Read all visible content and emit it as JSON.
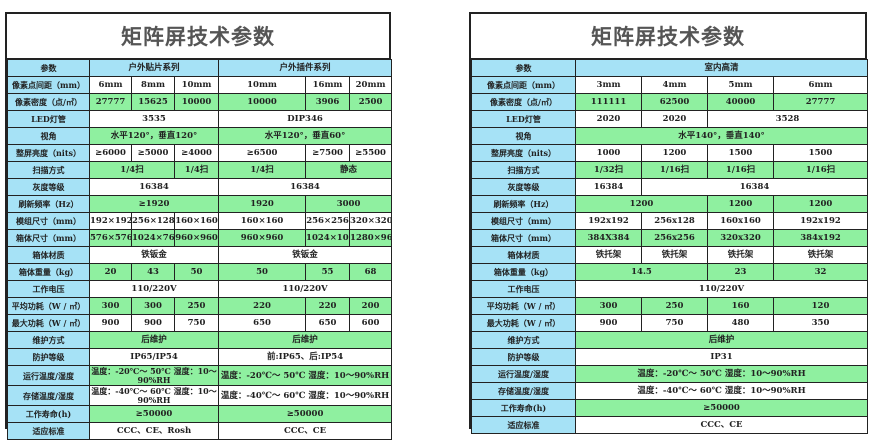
{
  "colors": {
    "label_bg": "#a6e2f6",
    "green_row": "#8ff0a0",
    "title": "#555555"
  },
  "left": {
    "title": "矩阵屏技术参数",
    "header": [
      {
        "t": "参数"
      },
      {
        "t": "户外贴片系列",
        "s": 3
      },
      {
        "t": "户外插件系列",
        "s": 3
      }
    ],
    "rows": [
      {
        "label": "像素点间距（mm）",
        "cells": [
          {
            "t": "6mm"
          },
          {
            "t": "8mm"
          },
          {
            "t": "10mm"
          },
          {
            "t": "10mm"
          },
          {
            "t": "16mm"
          },
          {
            "t": "20mm"
          }
        ]
      },
      {
        "label": "像素密度（点/㎡）",
        "cells": [
          {
            "t": "27777"
          },
          {
            "t": "15625"
          },
          {
            "t": "10000"
          },
          {
            "t": "10000"
          },
          {
            "t": "3906"
          },
          {
            "t": "2500"
          }
        ]
      },
      {
        "label": "LED灯管",
        "cells": [
          {
            "t": "3535",
            "s": 3
          },
          {
            "t": "DIP346",
            "s": 3
          }
        ]
      },
      {
        "label": "视角",
        "cells": [
          {
            "t": "水平120°，垂直120°",
            "s": 3
          },
          {
            "t": "水平120°，垂直60°",
            "s": 3
          }
        ]
      },
      {
        "label": "整屏亮度（nits）",
        "cells": [
          {
            "t": "≥6000"
          },
          {
            "t": "≥5000"
          },
          {
            "t": "≥4000"
          },
          {
            "t": "≥6500"
          },
          {
            "t": "≥7500"
          },
          {
            "t": "≥5500"
          }
        ]
      },
      {
        "label": "扫描方式",
        "cells": [
          {
            "t": "1/4扫",
            "s": 2
          },
          {
            "t": "1/4扫"
          },
          {
            "t": "1/4扫"
          },
          {
            "t": "静态",
            "s": 2
          }
        ]
      },
      {
        "label": "灰度等级",
        "cells": [
          {
            "t": "16384",
            "s": 3
          },
          {
            "t": "16384",
            "s": 3
          }
        ]
      },
      {
        "label": "刷新频率（Hz）",
        "cells": [
          {
            "t": "≥1920",
            "s": 3
          },
          {
            "t": "1920"
          },
          {
            "t": "3000",
            "s": 2
          }
        ]
      },
      {
        "label": "模组尺寸（mm）",
        "cells": [
          {
            "t": "192×192"
          },
          {
            "t": "256×128"
          },
          {
            "t": "160×160"
          },
          {
            "t": "160×160"
          },
          {
            "t": "256×256"
          },
          {
            "t": "320×320"
          }
        ]
      },
      {
        "label": "箱体尺寸（mm）",
        "cells": [
          {
            "t": "576×576"
          },
          {
            "t": "1024×768"
          },
          {
            "t": "960×960"
          },
          {
            "t": "960×960"
          },
          {
            "t": "1024×1024"
          },
          {
            "t": "1280×960"
          }
        ]
      },
      {
        "label": "箱体材质",
        "cells": [
          {
            "t": "铁钣金",
            "s": 3
          },
          {
            "t": "铁钣金",
            "s": 3
          }
        ]
      },
      {
        "label": "箱体重量（kg）",
        "cells": [
          {
            "t": "20"
          },
          {
            "t": "43"
          },
          {
            "t": "50"
          },
          {
            "t": "50"
          },
          {
            "t": "55"
          },
          {
            "t": "68"
          }
        ]
      },
      {
        "label": "工作电压",
        "cells": [
          {
            "t": "110/220V",
            "s": 3
          },
          {
            "t": "110/220V",
            "s": 3
          }
        ]
      },
      {
        "label": "平均功耗（W / ㎡）",
        "cells": [
          {
            "t": "300"
          },
          {
            "t": "300"
          },
          {
            "t": "250"
          },
          {
            "t": "220"
          },
          {
            "t": "220"
          },
          {
            "t": "200"
          }
        ]
      },
      {
        "label": "最大功耗（W / ㎡）",
        "cells": [
          {
            "t": "900"
          },
          {
            "t": "900"
          },
          {
            "t": "750"
          },
          {
            "t": "650"
          },
          {
            "t": "650"
          },
          {
            "t": "600"
          }
        ]
      },
      {
        "label": "维护方式",
        "cells": [
          {
            "t": "后维护",
            "s": 3
          },
          {
            "t": "后维护",
            "s": 3
          }
        ]
      },
      {
        "label": "防护等级",
        "cells": [
          {
            "t": "IP65/IP54",
            "s": 3
          },
          {
            "t": "前:IP65、后:IP54",
            "s": 3
          }
        ]
      },
      {
        "label": "运行温度/湿度",
        "cells": [
          {
            "t": "温度：-20℃～ 50℃ 湿度：10～90%RH",
            "s": 3,
            "wrap": true
          },
          {
            "t": "温度：-20℃～ 50℃ 湿度：10～90%RH",
            "s": 3
          }
        ]
      },
      {
        "label": "存储温度/湿度",
        "cells": [
          {
            "t": "温度：-40℃～ 60℃ 湿度：10～90%RH",
            "s": 3,
            "wrap": true
          },
          {
            "t": "温度：-40℃～ 60℃ 湿度：10～90%RH",
            "s": 3
          }
        ]
      },
      {
        "label": "工作寿命(h)",
        "cells": [
          {
            "t": "≥50000",
            "s": 3
          },
          {
            "t": "≥50000",
            "s": 3
          }
        ]
      },
      {
        "label": "适应标准",
        "cells": [
          {
            "t": "CCC、CE、Rosh",
            "s": 3
          },
          {
            "t": "CCC、CE",
            "s": 3
          }
        ]
      }
    ]
  },
  "right": {
    "title": "矩阵屏技术参数",
    "header": [
      {
        "t": "参数"
      },
      {
        "t": "室内高清",
        "s": 4
      }
    ],
    "rows": [
      {
        "label": "像素点间距（mm）",
        "cells": [
          {
            "t": "3mm"
          },
          {
            "t": "4mm"
          },
          {
            "t": "5mm"
          },
          {
            "t": "6mm"
          }
        ]
      },
      {
        "label": "像素密度（点/㎡）",
        "cells": [
          {
            "t": "111111"
          },
          {
            "t": "62500"
          },
          {
            "t": "40000"
          },
          {
            "t": "27777"
          }
        ]
      },
      {
        "label": "LED灯管",
        "cells": [
          {
            "t": "2020"
          },
          {
            "t": "2020"
          },
          {
            "t": "3528",
            "s": 2
          }
        ]
      },
      {
        "label": "视角",
        "cells": [
          {
            "t": "水平140°，垂直140°",
            "s": 4
          }
        ]
      },
      {
        "label": "整屏亮度（nits）",
        "cells": [
          {
            "t": "1000"
          },
          {
            "t": "1200"
          },
          {
            "t": "1500"
          },
          {
            "t": "1500"
          }
        ]
      },
      {
        "label": "扫描方式",
        "cells": [
          {
            "t": "1/32扫"
          },
          {
            "t": "1/16扫"
          },
          {
            "t": "1/16扫"
          },
          {
            "t": "1/16扫"
          }
        ]
      },
      {
        "label": "灰度等级",
        "cells": [
          {
            "t": "16384"
          },
          {
            "t": "16384",
            "s": 3
          }
        ]
      },
      {
        "label": "刷新频率（Hz）",
        "cells": [
          {
            "t": "1200",
            "s": 2
          },
          {
            "t": "1200"
          },
          {
            "t": "1200"
          }
        ]
      },
      {
        "label": "模组尺寸（mm）",
        "cells": [
          {
            "t": "192x192"
          },
          {
            "t": "256x128"
          },
          {
            "t": "160x160"
          },
          {
            "t": "192x192"
          }
        ]
      },
      {
        "label": "箱体尺寸（mm）",
        "cells": [
          {
            "t": "384X384"
          },
          {
            "t": "256x256"
          },
          {
            "t": "320x320"
          },
          {
            "t": "384x192"
          }
        ]
      },
      {
        "label": "箱体材质",
        "cells": [
          {
            "t": "铁托架"
          },
          {
            "t": "铁托架"
          },
          {
            "t": "铁托架"
          },
          {
            "t": "铁托架"
          }
        ]
      },
      {
        "label": "箱体重量（kg）",
        "cells": [
          {
            "t": "14.5",
            "s": 2
          },
          {
            "t": "23"
          },
          {
            "t": "32"
          }
        ]
      },
      {
        "label": "工作电压",
        "cells": [
          {
            "t": "110/220V",
            "s": 4
          }
        ]
      },
      {
        "label": "平均功耗（W / ㎡）",
        "cells": [
          {
            "t": "300"
          },
          {
            "t": "250"
          },
          {
            "t": "160"
          },
          {
            "t": "120"
          }
        ]
      },
      {
        "label": "最大功耗（W / ㎡）",
        "cells": [
          {
            "t": "900"
          },
          {
            "t": "750"
          },
          {
            "t": "480"
          },
          {
            "t": "350"
          }
        ]
      },
      {
        "label": "维护方式",
        "cells": [
          {
            "t": "后维护",
            "s": 4
          }
        ]
      },
      {
        "label": "防护等级",
        "cells": [
          {
            "t": "IP31",
            "s": 4
          }
        ]
      },
      {
        "label": "运行温度/湿度",
        "cells": [
          {
            "t": "温度：-20℃～ 50℃ 湿度：10～90%RH",
            "s": 4
          }
        ]
      },
      {
        "label": "存储温度/湿度",
        "cells": [
          {
            "t": "温度：-40℃～ 60℃ 湿度：10～90%RH",
            "s": 4
          }
        ]
      },
      {
        "label": "工作寿命(h)",
        "cells": [
          {
            "t": "≥50000",
            "s": 4
          }
        ]
      },
      {
        "label": "适应标准",
        "cells": [
          {
            "t": "CCC、CE",
            "s": 4
          }
        ]
      }
    ]
  }
}
